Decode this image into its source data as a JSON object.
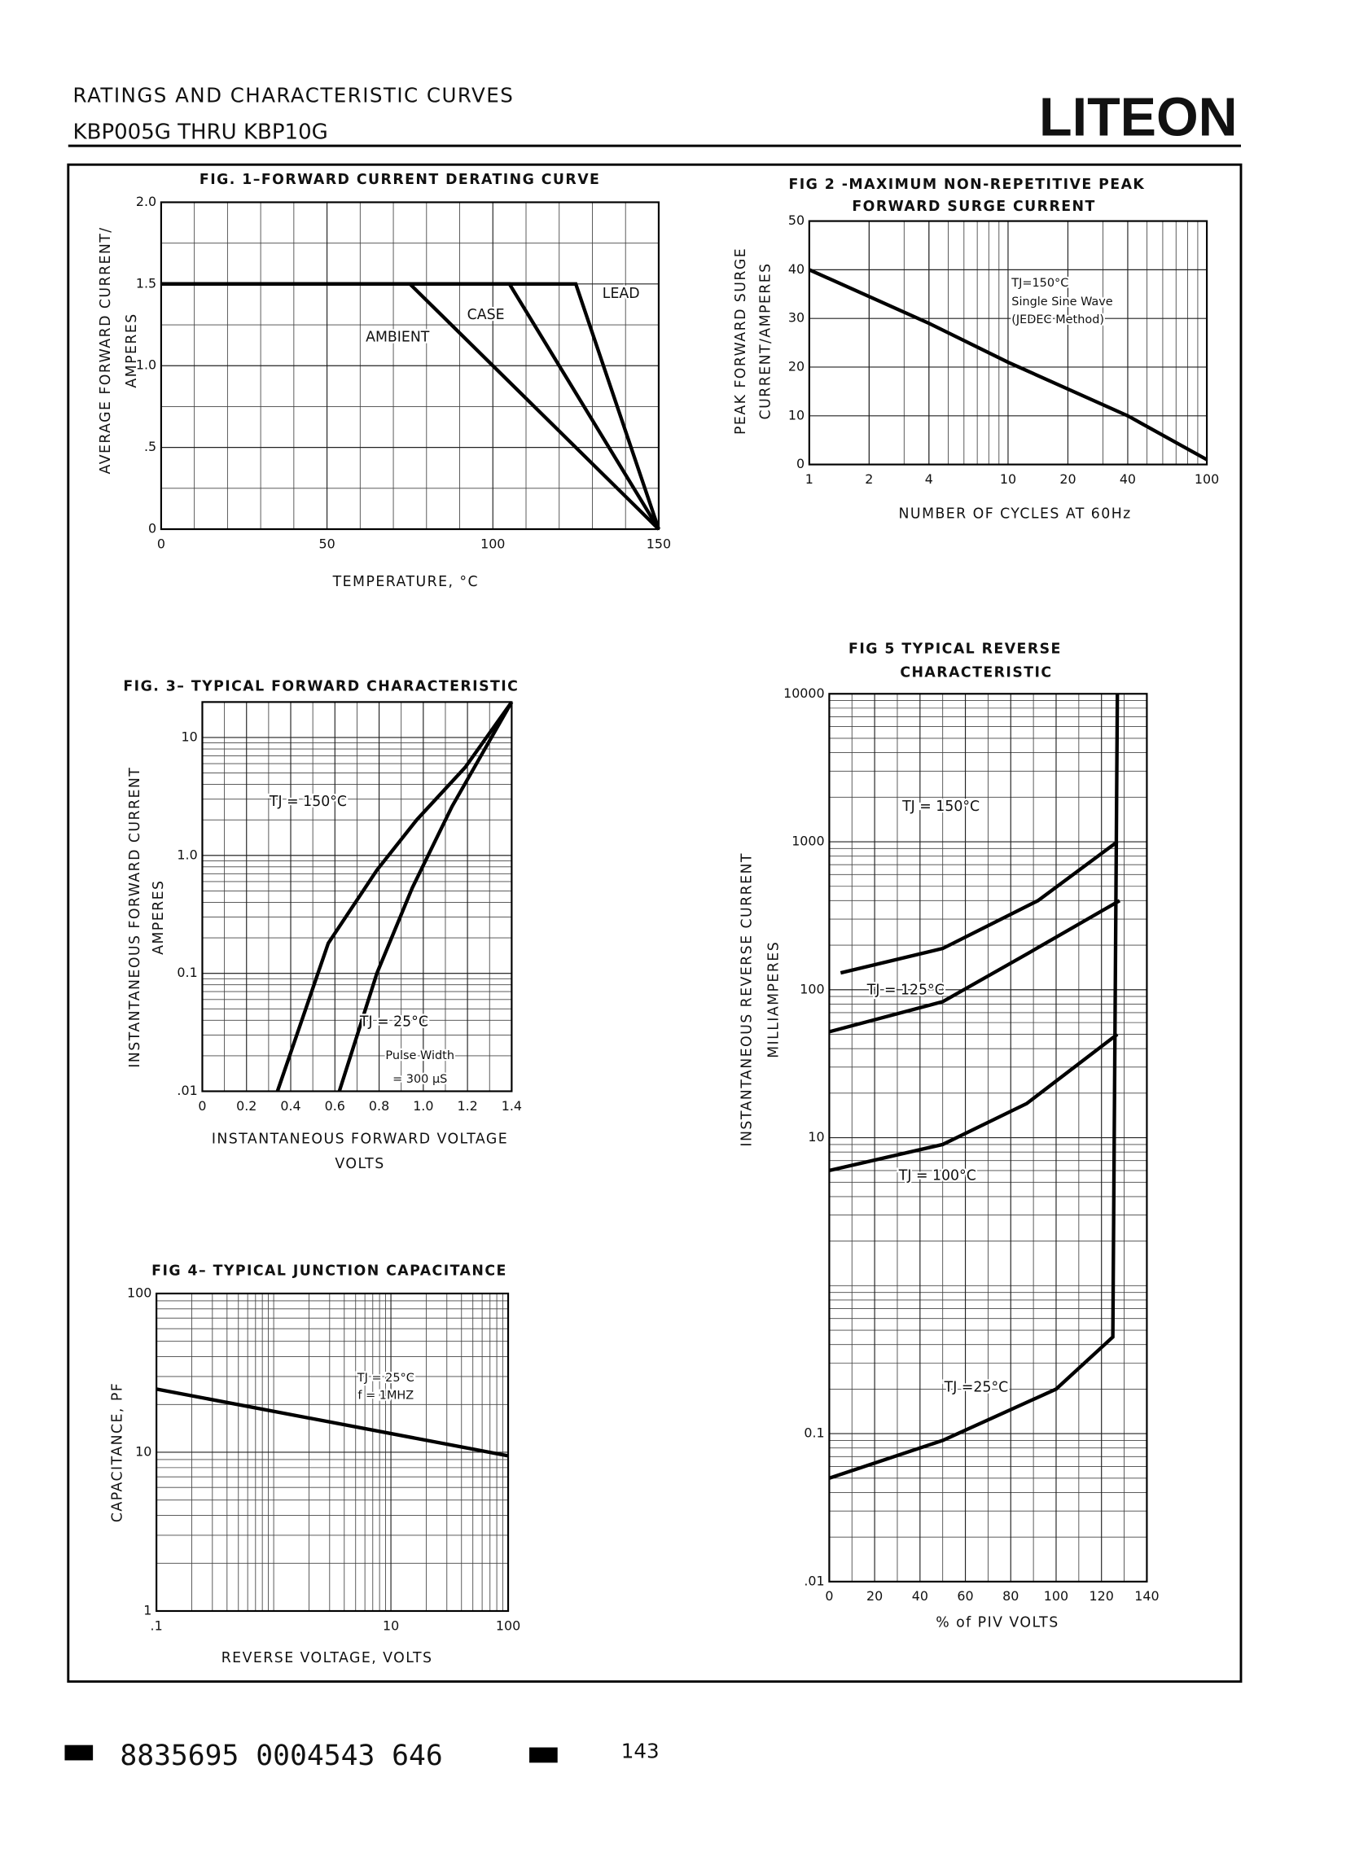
{
  "header": {
    "title": "RATINGS AND CHARACTERISTIC CURVES",
    "subtitle": "KBP005G THRU KBP10G",
    "logo": "LITEON"
  },
  "footer": {
    "code": "8835695 0004543 646",
    "page": "143"
  },
  "chart_data": [
    {
      "type": "line",
      "title": [
        "FIG. 1–FORWARD CURRENT DERATING CURVE"
      ],
      "ylabel": [
        "AVERAGE FORWARD CURRENT/",
        "AMPERES"
      ],
      "xlabel": [
        "TEMPERATURE, °C"
      ],
      "xlim": [
        0,
        150
      ],
      "ylim": [
        0,
        2
      ],
      "xticks": [
        0,
        50,
        100,
        150
      ],
      "yticks": [
        0,
        {
          "value": 0.5,
          "label": ".5"
        },
        {
          "value": 1,
          "label": "1.0"
        },
        1.5,
        {
          "value": 2,
          "label": "2.0"
        }
      ],
      "grid": true,
      "color": "#000000",
      "series": [
        {
          "name": "AMBIENT",
          "x": [
            0,
            75,
            150
          ],
          "values": [
            1.5,
            1.5,
            0
          ]
        },
        {
          "name": "CASE",
          "x": [
            0,
            105,
            150
          ],
          "values": [
            1.5,
            1.5,
            0
          ]
        },
        {
          "name": "LEAD",
          "x": [
            0,
            125,
            150
          ],
          "values": [
            1.5,
            1.5,
            0
          ]
        }
      ],
      "annotations": []
    },
    {
      "type": "line",
      "title": [
        "FIG 2 -MAXIMUM NON-REPETITIVE PEAK",
        "FORWARD SURGE CURRENT"
      ],
      "ylabel": [
        "PEAK FORWARD SURGE",
        "CURRENT/AMPERES"
      ],
      "xlabel": [
        "NUMBER OF CYCLES AT 60Hz"
      ],
      "xscale": "log",
      "xlim": [
        1,
        100
      ],
      "ylim": [
        0,
        50
      ],
      "xticks": [
        1,
        2,
        4,
        10,
        20,
        40,
        100
      ],
      "yticks": [
        0,
        10,
        20,
        30,
        40,
        50
      ],
      "grid": true,
      "color": "#000000",
      "series": [
        {
          "x": [
            1,
            4,
            10,
            40,
            100
          ],
          "values": [
            40,
            29,
            21,
            10,
            1
          ]
        }
      ],
      "annotations": [
        "TJ=150°C",
        "Single Sine Wave",
        "(JEDEC Method)"
      ]
    },
    {
      "type": "line",
      "title": [
        "FIG. 3– TYPICAL FORWARD CHARACTERISTIC"
      ],
      "ylabel": [
        "INSTANTANEOUS FORWARD CURRENT",
        "AMPERES"
      ],
      "xlabel": [
        "INSTANTANEOUS FORWARD VOLTAGE",
        "VOLTS"
      ],
      "yscale": "log",
      "xlim": [
        0,
        1.4
      ],
      "ylim": [
        0.01,
        20
      ],
      "xticks": [
        0,
        0.2,
        0.4,
        0.6,
        0.8,
        {
          "value": 1,
          "label": "1.0"
        },
        1.2,
        1.4
      ],
      "yticks": [
        {
          "value": 0.01,
          "label": ".01"
        },
        0.1,
        {
          "value": 1,
          "label": "1.0"
        },
        10
      ],
      "grid": true,
      "color": "#000000",
      "series": [
        {
          "name": "TJ = 150°C",
          "x": [
            0.34,
            0.57,
            0.79,
            0.97,
            1.19,
            1.4
          ],
          "values": [
            0.01,
            0.18,
            0.75,
            2,
            5.6,
            20
          ]
        },
        {
          "name": "TJ = 25°C",
          "x": [
            0.62,
            0.79,
            0.95,
            1.13,
            1.4
          ],
          "values": [
            0.01,
            0.1,
            0.53,
            2.6,
            20
          ]
        }
      ],
      "annotations": [
        "Pulse Width",
        "= 300 μS"
      ]
    },
    {
      "type": "line",
      "title": [
        "FIG 4– TYPICAL JUNCTION CAPACITANCE"
      ],
      "ylabel": [
        "CAPACITANCE, PF"
      ],
      "xlabel": [
        "REVERSE VOLTAGE, VOLTS"
      ],
      "xscale": "log",
      "yscale": "log",
      "xlim": [
        0.1,
        100
      ],
      "ylim": [
        1,
        100
      ],
      "xticks": [
        {
          "value": 0.1,
          "label": ".1"
        },
        10,
        100
      ],
      "yticks": [
        1,
        10,
        100
      ],
      "grid": true,
      "color": "#000000",
      "series": [
        {
          "x": [
            0.1,
            100
          ],
          "values": [
            25,
            9.5
          ]
        }
      ],
      "annotations": [
        "TJ = 25°C",
        "f = 1MHZ"
      ]
    },
    {
      "type": "line",
      "title": [
        "FIG 5 TYPICAL REVERSE",
        "CHARACTERISTIC"
      ],
      "ylabel": [
        "INSTANTANEOUS REVERSE CURRENT",
        "MILLIAMPERES"
      ],
      "xlabel": [
        "% of PIV VOLTS"
      ],
      "yscale": "log",
      "xlim": [
        0,
        140
      ],
      "ylim": [
        0.01,
        10000
      ],
      "xticks": [
        0,
        20,
        40,
        60,
        80,
        100,
        120,
        140
      ],
      "yticks": [
        {
          "value": 0.01,
          "label": ".01"
        },
        0.1,
        10,
        100,
        1000,
        10000
      ],
      "grid": true,
      "color": "#000000",
      "series": [
        {
          "name": "TJ = 150°C",
          "x": [
            5,
            50,
            92,
            127
          ],
          "values": [
            130,
            190,
            400,
            1000
          ]
        },
        {
          "name": "TJ = 125°C",
          "x": [
            0,
            50,
            87,
            128
          ],
          "values": [
            52,
            83,
            174,
            400
          ]
        },
        {
          "name": "TJ = 100°C",
          "x": [
            0,
            50,
            87,
            127
          ],
          "values": [
            6,
            9,
            17,
            50
          ]
        },
        {
          "name": "TJ =25°C",
          "x": [
            0,
            50,
            100,
            125,
            127
          ],
          "values": [
            0.05,
            0.09,
            0.2,
            0.45,
            10000
          ]
        }
      ],
      "annotations": []
    }
  ]
}
